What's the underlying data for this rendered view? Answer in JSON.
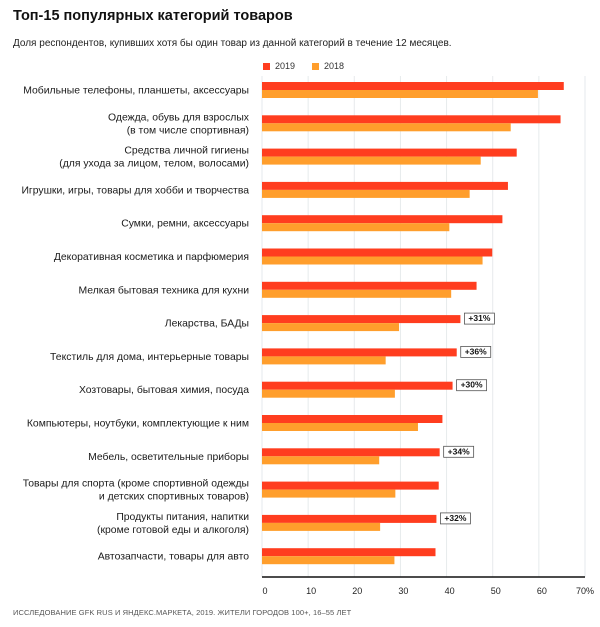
{
  "chart_data": {
    "type": "bar",
    "orientation": "horizontal",
    "title": "Топ-15 популярных категорий товаров",
    "subtitle": "Доля респондентов, купивших хотя бы один товар из данной категорий в течение 12 месяцев.",
    "xlabel": "",
    "ylabel": "",
    "xlim": [
      0,
      70
    ],
    "x_ticks": [
      "0",
      "10",
      "20",
      "30",
      "40",
      "50",
      "60",
      "70%"
    ],
    "x_tick_values": [
      0,
      10,
      20,
      30,
      40,
      50,
      60,
      70
    ],
    "grid": true,
    "legend_position": "top",
    "categories": [
      [
        "Мобильные телефоны, планшеты, аксессуары"
      ],
      [
        "Одежда, обувь для взрослых",
        "(в том числе спортивная)"
      ],
      [
        "Средства личной гигиены",
        "(для ухода за лицом, телом, волосами)"
      ],
      [
        "Игрушки, игры, товары для хобби и творчества"
      ],
      [
        "Сумки, ремни, аксессуары"
      ],
      [
        "Декоративная косметика и парфюмерия"
      ],
      [
        "Мелкая бытовая техника для кухни"
      ],
      [
        "Лекарства, БАДы"
      ],
      [
        "Текстиль для дома, интерьерные товары"
      ],
      [
        "Хозтовары, бытовая химия, посуда"
      ],
      [
        "Компьютеры, ноутбуки, комплектующие к ним"
      ],
      [
        "Мебель, осветительные приборы"
      ],
      [
        "Товары для спорта (кроме спортивной одежды",
        "и детских спортивных товаров)"
      ],
      [
        "Продукты питания, напитки",
        "(кроме готовой еды и алкоголя)"
      ],
      [
        "Автозапчасти, товары для авто"
      ]
    ],
    "series": [
      {
        "name": "2019",
        "color": "#ff3d1f",
        "values": [
          65.4,
          64.7,
          55.2,
          53.3,
          52.1,
          49.9,
          46.5,
          43.0,
          42.2,
          41.3,
          39.1,
          38.5,
          38.3,
          37.8,
          37.6
        ]
      },
      {
        "name": "2018",
        "color": "#ff9e2c",
        "values": [
          59.8,
          53.9,
          47.4,
          45.0,
          40.6,
          47.8,
          41.0,
          29.7,
          26.8,
          28.8,
          33.8,
          25.4,
          28.9,
          25.6,
          28.7
        ]
      }
    ],
    "annotations": [
      {
        "category_index": 7,
        "text": "+31%"
      },
      {
        "category_index": 8,
        "text": "+36%"
      },
      {
        "category_index": 9,
        "text": "+30%"
      },
      {
        "category_index": 11,
        "text": "+34%"
      },
      {
        "category_index": 13,
        "text": "+32%"
      }
    ],
    "source": "ИССЛЕДОВАНИЕ GFK RUS И ЯНДЕКС.МАРКЕТА, 2019. ЖИТЕЛИ ГОРОДОВ 100+, 16–55 ЛЕТ"
  }
}
